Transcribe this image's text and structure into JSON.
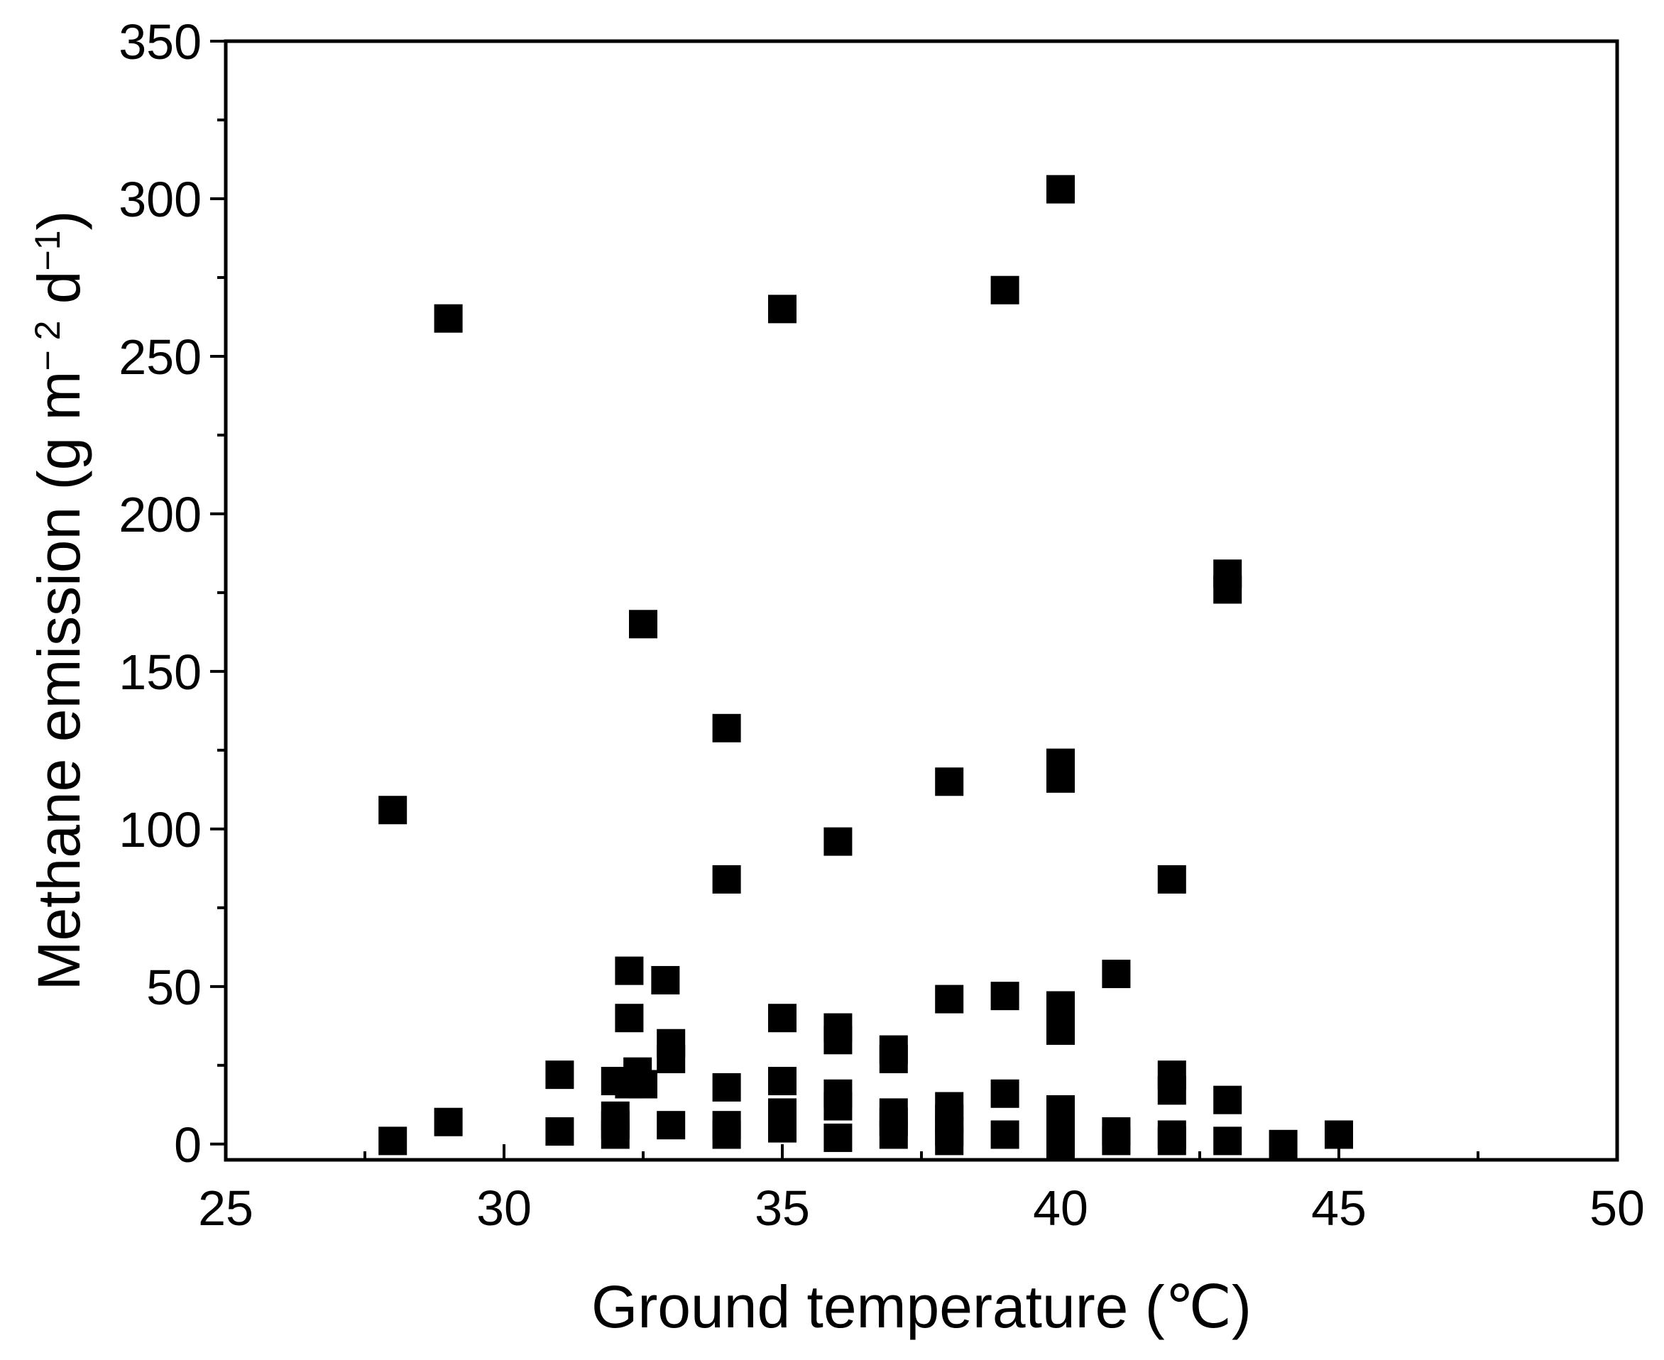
{
  "chart_data": {
    "type": "scatter",
    "title": "",
    "xlabel": "Ground temperature (℃)",
    "ylabel_parts": [
      "Methane emission (g m",
      "− 2",
      " d",
      "−1",
      ")"
    ],
    "xlim": [
      25,
      50
    ],
    "ylim": [
      -5,
      350
    ],
    "x_ticks": [
      25,
      30,
      35,
      40,
      45,
      50
    ],
    "y_ticks": [
      0,
      50,
      100,
      150,
      200,
      250,
      300,
      350
    ],
    "x_tick_labels": [
      "25",
      "30",
      "35",
      "40",
      "45",
      "50"
    ],
    "y_tick_labels": [
      "0",
      "50",
      "100",
      "150",
      "200",
      "250",
      "300",
      "350"
    ],
    "grid": false,
    "legend": "none",
    "marker": "square",
    "marker_color": "#000000",
    "series": [
      {
        "points": [
          [
            28,
            106
          ],
          [
            28,
            1
          ],
          [
            29,
            262
          ],
          [
            29,
            7
          ],
          [
            31,
            22
          ],
          [
            31,
            4
          ],
          [
            32,
            20
          ],
          [
            32,
            9
          ],
          [
            32,
            6
          ],
          [
            32,
            3
          ],
          [
            32.25,
            55
          ],
          [
            32.25,
            40
          ],
          [
            32.25,
            19
          ],
          [
            32.4,
            23
          ],
          [
            32.5,
            19
          ],
          [
            32.5,
            165
          ],
          [
            32.9,
            52
          ],
          [
            33,
            32
          ],
          [
            33,
            27
          ],
          [
            33,
            6
          ],
          [
            34,
            132
          ],
          [
            34,
            84
          ],
          [
            34,
            18
          ],
          [
            34,
            6
          ],
          [
            34,
            3
          ],
          [
            35,
            265
          ],
          [
            35,
            40
          ],
          [
            35,
            20
          ],
          [
            35,
            10
          ],
          [
            35,
            5
          ],
          [
            36,
            96
          ],
          [
            36,
            37
          ],
          [
            36,
            33
          ],
          [
            36,
            16
          ],
          [
            36,
            12
          ],
          [
            36,
            2
          ],
          [
            37,
            30
          ],
          [
            37,
            27
          ],
          [
            37,
            10
          ],
          [
            37,
            7
          ],
          [
            37,
            3
          ],
          [
            38,
            115
          ],
          [
            38,
            46
          ],
          [
            38,
            12
          ],
          [
            38,
            8
          ],
          [
            38,
            4
          ],
          [
            38,
            1
          ],
          [
            39,
            271
          ],
          [
            39,
            47
          ],
          [
            39,
            16
          ],
          [
            39,
            3
          ],
          [
            40,
            303
          ],
          [
            40,
            121
          ],
          [
            40,
            116
          ],
          [
            40,
            44
          ],
          [
            40,
            36
          ],
          [
            40,
            11
          ],
          [
            40,
            7
          ],
          [
            40,
            3
          ],
          [
            40,
            0
          ],
          [
            41,
            54
          ],
          [
            41,
            4
          ],
          [
            41,
            1
          ],
          [
            42,
            84
          ],
          [
            42,
            22
          ],
          [
            42,
            17
          ],
          [
            42,
            3
          ],
          [
            42,
            1
          ],
          [
            43,
            181
          ],
          [
            43,
            176
          ],
          [
            43,
            14
          ],
          [
            43,
            1
          ],
          [
            44,
            0
          ],
          [
            45,
            3
          ]
        ]
      }
    ]
  }
}
